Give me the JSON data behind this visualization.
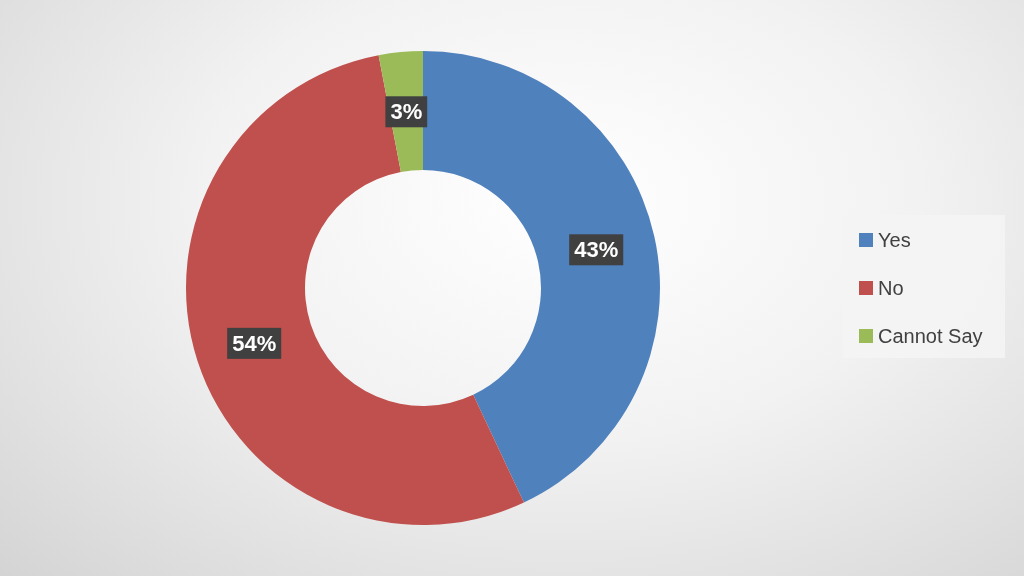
{
  "chart_data": {
    "type": "donut",
    "categories": [
      "Yes",
      "No",
      "Cannot Say"
    ],
    "values": [
      43,
      54,
      3
    ],
    "colors": [
      "#4f81bd",
      "#c0504d",
      "#9bbb59"
    ],
    "value_labels": [
      "43%",
      "54%",
      "3%"
    ],
    "legend": "right"
  }
}
